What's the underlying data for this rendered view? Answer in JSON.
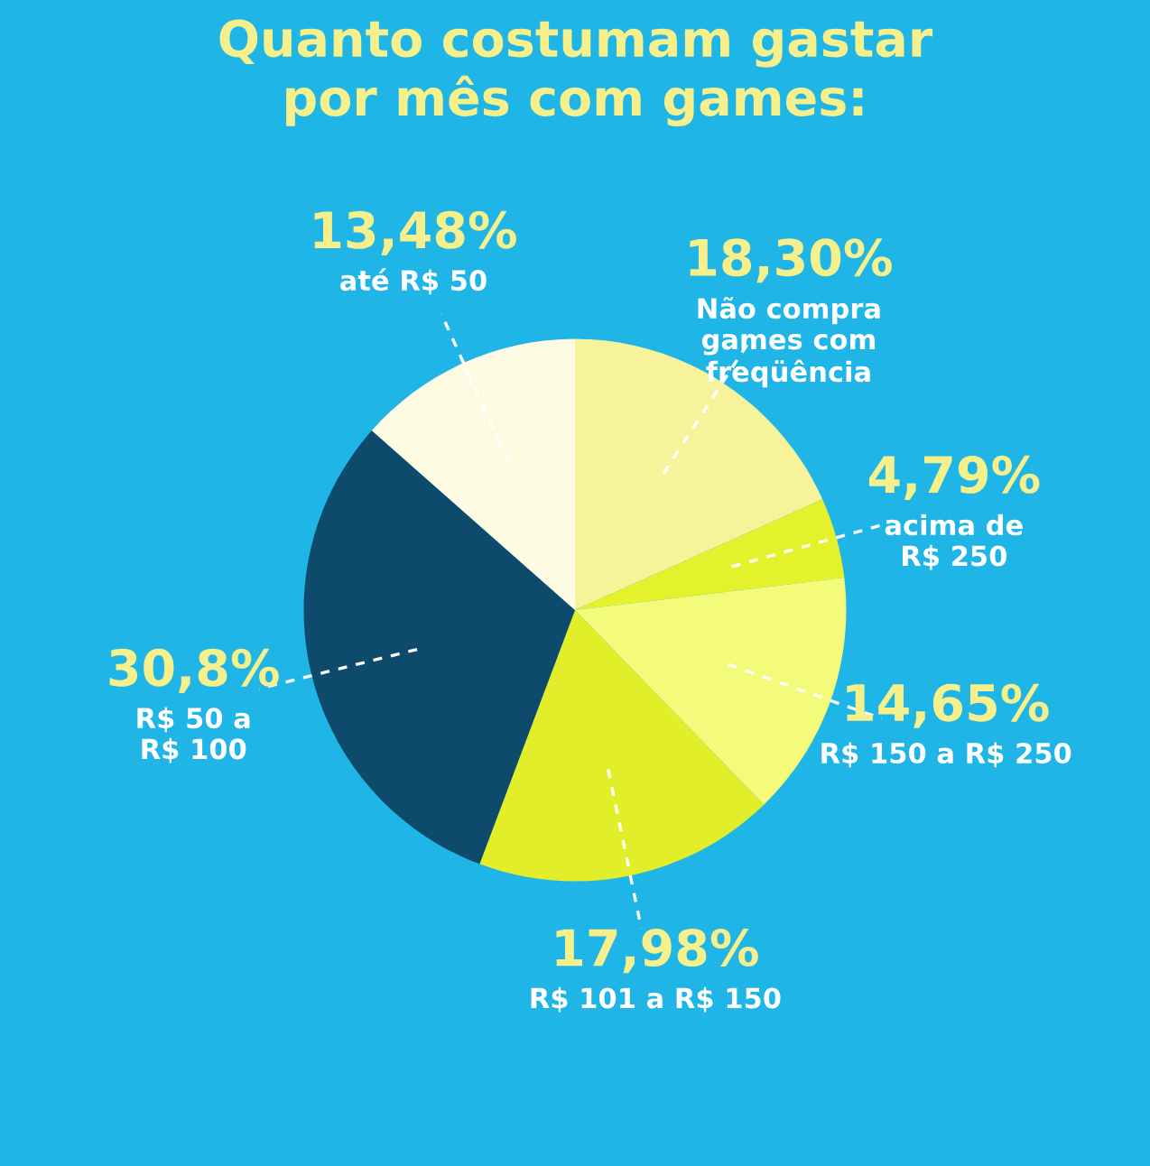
{
  "chart_data": {
    "type": "pie",
    "title": "Quanto costumam gastar\npor mês com games:",
    "categories": [
      "Não compra\ngames com\nfreqüência",
      "acima de\nR$ 250",
      "R$ 150 a R$ 250",
      "R$ 101 a R$ 150",
      "R$ 50 a\nR$ 100",
      "até R$ 50"
    ],
    "values": [
      18.3,
      4.79,
      14.65,
      17.98,
      30.8,
      13.48
    ],
    "value_labels": [
      "18,30%",
      "4,79%",
      "14,65%",
      "17,98%",
      "30,8%",
      "13,48%"
    ],
    "colors": [
      "#f7f39a",
      "#e4f22c",
      "#f4fa7a",
      "#e2ee2a",
      "#0d4a6b",
      "#fdfbe2"
    ]
  }
}
